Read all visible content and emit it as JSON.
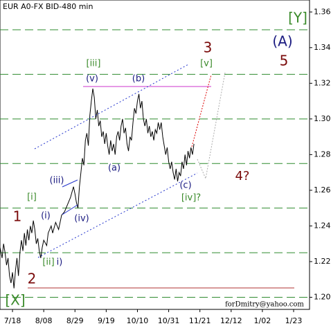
{
  "chart_data": {
    "type": "line",
    "title": "EUR A0-FX BID-480 min",
    "x": [
      -8.4,
      -7,
      -6,
      -5,
      -4,
      -3,
      -2,
      -1,
      0,
      1,
      2,
      3,
      4,
      5,
      6,
      7,
      8,
      9,
      10,
      11,
      12,
      13,
      14,
      15,
      16,
      17,
      18,
      19,
      20,
      21,
      23,
      24,
      26,
      27,
      29,
      31,
      33,
      35,
      37,
      39,
      41,
      42,
      43,
      44,
      45,
      46,
      47,
      48,
      49,
      50,
      51,
      52,
      53,
      54,
      55,
      56,
      57,
      58,
      59,
      60,
      61,
      62,
      63,
      64,
      65,
      66,
      67,
      68,
      69,
      70,
      71,
      72,
      73,
      74,
      75,
      76,
      77,
      78,
      79,
      80,
      81,
      82,
      83,
      84,
      85,
      86,
      87,
      88,
      89,
      90,
      91,
      92,
      93,
      94,
      95,
      96,
      97,
      98,
      99,
      100,
      101,
      102,
      103,
      104,
      105,
      106,
      107,
      108,
      109,
      110,
      111,
      112,
      113,
      114,
      115,
      116,
      117,
      118,
      119,
      120,
      121,
      122
    ],
    "series": [
      {
        "name": "EUR A0-FX",
        "color": "#000000",
        "values": [
          1.228,
          1.222,
          1.23,
          1.225,
          1.218,
          1.222,
          1.212,
          1.208,
          1.214,
          1.205,
          1.215,
          1.222,
          1.212,
          1.225,
          1.232,
          1.226,
          1.236,
          1.229,
          1.238,
          1.232,
          1.24,
          1.236,
          1.243,
          1.238,
          1.23,
          1.233,
          1.226,
          1.222,
          1.228,
          1.232,
          1.229,
          1.236,
          1.24,
          1.236,
          1.242,
          1.238,
          1.246,
          1.248,
          1.252,
          1.256,
          1.262,
          1.258,
          1.253,
          1.25,
          1.262,
          1.27,
          1.278,
          1.274,
          1.288,
          1.292,
          1.285,
          1.302,
          1.31,
          1.317,
          1.312,
          1.3,
          1.305,
          1.296,
          1.299,
          1.29,
          1.293,
          1.286,
          1.292,
          1.285,
          1.28,
          1.288,
          1.282,
          1.286,
          1.28,
          1.29,
          1.293,
          1.288,
          1.296,
          1.3,
          1.292,
          1.295,
          1.286,
          1.282,
          1.29,
          1.288,
          1.298,
          1.306,
          1.303,
          1.31,
          1.314,
          1.306,
          1.31,
          1.3,
          1.296,
          1.3,
          1.292,
          1.296,
          1.29,
          1.293,
          1.288,
          1.294,
          1.292,
          1.298,
          1.294,
          1.298,
          1.29,
          1.285,
          1.28,
          1.284,
          1.276,
          1.272,
          1.276,
          1.27,
          1.266,
          1.272,
          1.265,
          1.27,
          1.268,
          1.276,
          1.272,
          1.28,
          1.274,
          1.282,
          1.278,
          1.284,
          1.28,
          1.286
        ]
      }
    ],
    "xlim": [
      -8.4,
      199.7
    ],
    "ylim": [
      1.1932,
      1.3667
    ],
    "xticks": [
      {
        "value": 0,
        "label": "7/18"
      },
      {
        "value": 21,
        "label": "8/08"
      },
      {
        "value": 42,
        "label": "8/29"
      },
      {
        "value": 63,
        "label": "9/19"
      },
      {
        "value": 84,
        "label": "10/10"
      },
      {
        "value": 105,
        "label": "10/31"
      },
      {
        "value": 126,
        "label": "11/21"
      },
      {
        "value": 147,
        "label": "12/12"
      },
      {
        "value": 168,
        "label": "1/02"
      },
      {
        "value": 189,
        "label": "1/23"
      }
    ],
    "yticks": [
      {
        "value": 1.2,
        "label": "1.20"
      },
      {
        "value": 1.22,
        "label": "1.22"
      },
      {
        "value": 1.24,
        "label": "1.24"
      },
      {
        "value": 1.26,
        "label": "1.26"
      },
      {
        "value": 1.28,
        "label": "1.28"
      },
      {
        "value": 1.3,
        "label": "1.30"
      },
      {
        "value": 1.32,
        "label": "1.32"
      },
      {
        "value": 1.34,
        "label": "1.34"
      },
      {
        "value": 1.36,
        "label": "1.36"
      }
    ],
    "hlines": [
      1.2,
      1.225,
      1.25,
      1.275,
      1.3,
      1.325,
      1.35
    ],
    "hline_color": "#2e8b2e",
    "annotations": [
      "[Y]",
      "(A)",
      "3",
      "5",
      "[iii]",
      "[v]",
      "(v)",
      "(b)",
      "(a)",
      "4?",
      "(c)",
      "[iv]?",
      "(iii)",
      "(i)",
      "[i]",
      "(iv)",
      "1",
      "[ii]",
      "i)",
      "2",
      "[X]",
      "forDmitry@yahoo.com"
    ]
  }
}
